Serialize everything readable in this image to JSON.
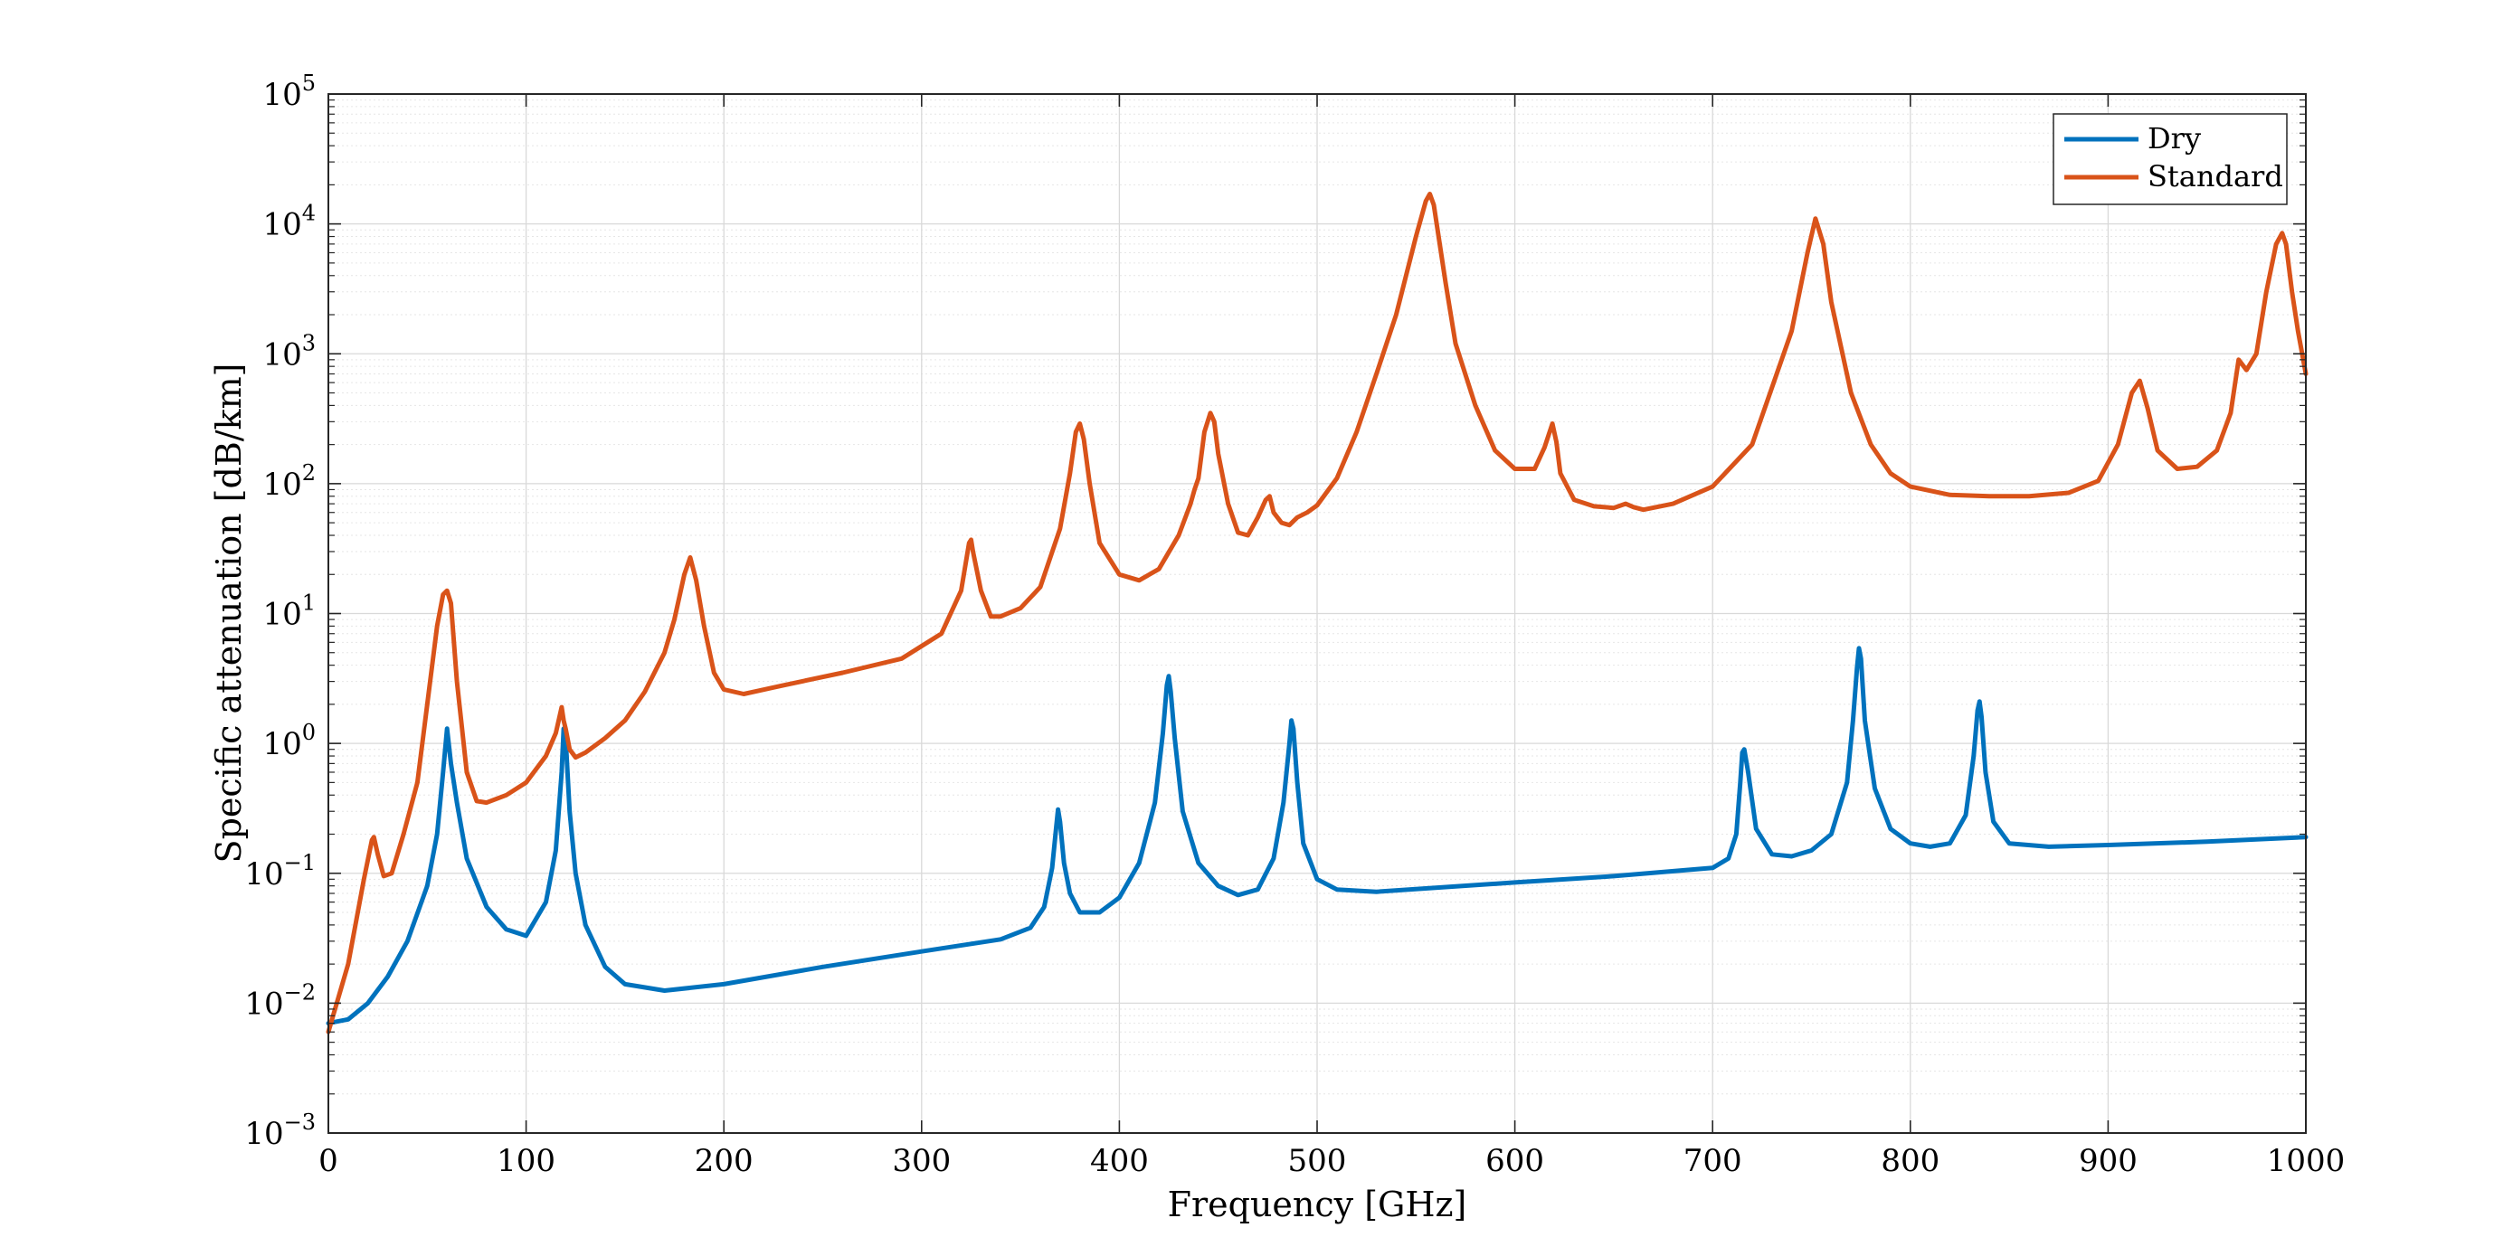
{
  "chart_data": {
    "type": "line",
    "title": "",
    "xlabel": "Frequency [GHz]",
    "ylabel": "Specific attenuation [dB/km]",
    "xlim": [
      0,
      1000
    ],
    "ylim": [
      0.001,
      100000
    ],
    "yscale": "log",
    "grid": true,
    "legend_position": "top-right",
    "x_ticks": [
      0,
      100,
      200,
      300,
      400,
      500,
      600,
      700,
      800,
      900,
      1000
    ],
    "x_tick_labels": [
      "0",
      "100",
      "200",
      "300",
      "400",
      "500",
      "600",
      "700",
      "800",
      "900",
      "1000"
    ],
    "y_ticks": [
      0.001,
      0.01,
      0.1,
      1,
      10,
      100,
      1000,
      10000,
      100000
    ],
    "y_tick_labels": [
      {
        "base": "10",
        "exp": "−3"
      },
      {
        "base": "10",
        "exp": "−2"
      },
      {
        "base": "10",
        "exp": "−1"
      },
      {
        "base": "10",
        "exp": "0"
      },
      {
        "base": "10",
        "exp": "1"
      },
      {
        "base": "10",
        "exp": "2"
      },
      {
        "base": "10",
        "exp": "3"
      },
      {
        "base": "10",
        "exp": "4"
      },
      {
        "base": "10",
        "exp": "5"
      }
    ],
    "series": [
      {
        "name": "Dry",
        "color": "#0072BD",
        "x": [
          0,
          10,
          20,
          30,
          40,
          50,
          55,
          58,
          60,
          62,
          65,
          70,
          80,
          90,
          100,
          110,
          115,
          118,
          119,
          120,
          122,
          125,
          130,
          140,
          150,
          170,
          200,
          250,
          300,
          340,
          355,
          362,
          366,
          368,
          369,
          370,
          372,
          375,
          380,
          390,
          400,
          410,
          418,
          422,
          424,
          425,
          426,
          428,
          432,
          440,
          450,
          460,
          470,
          478,
          483,
          486,
          487,
          488,
          490,
          493,
          500,
          510,
          530,
          600,
          650,
          700,
          708,
          712,
          714,
          715,
          716,
          718,
          722,
          730,
          740,
          750,
          760,
          768,
          771,
          773,
          774,
          775,
          777,
          782,
          790,
          800,
          810,
          820,
          828,
          832,
          834,
          835,
          836,
          838,
          842,
          850,
          870,
          900,
          950,
          1000
        ],
        "y": [
          0.007,
          0.0075,
          0.01,
          0.016,
          0.03,
          0.08,
          0.2,
          0.6,
          1.3,
          0.7,
          0.35,
          0.13,
          0.055,
          0.037,
          0.033,
          0.06,
          0.15,
          0.6,
          1.3,
          1.1,
          0.3,
          0.1,
          0.04,
          0.019,
          0.014,
          0.0125,
          0.014,
          0.019,
          0.025,
          0.031,
          0.038,
          0.055,
          0.11,
          0.22,
          0.31,
          0.25,
          0.12,
          0.07,
          0.05,
          0.05,
          0.065,
          0.12,
          0.35,
          1.2,
          2.8,
          3.3,
          2.5,
          1.1,
          0.3,
          0.12,
          0.08,
          0.068,
          0.075,
          0.13,
          0.35,
          1.0,
          1.5,
          1.3,
          0.5,
          0.17,
          0.09,
          0.075,
          0.072,
          0.085,
          0.095,
          0.11,
          0.13,
          0.2,
          0.5,
          0.85,
          0.9,
          0.6,
          0.22,
          0.14,
          0.135,
          0.15,
          0.2,
          0.5,
          1.5,
          3.8,
          5.4,
          4.5,
          1.5,
          0.45,
          0.22,
          0.17,
          0.16,
          0.17,
          0.28,
          0.8,
          1.8,
          2.1,
          1.6,
          0.6,
          0.25,
          0.17,
          0.16,
          0.165,
          0.175,
          0.19
        ]
      },
      {
        "name": "Standard",
        "color": "#D95319",
        "x": [
          0,
          10,
          18,
          22,
          23,
          25,
          28,
          32,
          38,
          45,
          50,
          55,
          58,
          60,
          62,
          65,
          70,
          75,
          80,
          90,
          100,
          110,
          115,
          118,
          119,
          120,
          122,
          125,
          130,
          140,
          150,
          160,
          170,
          175,
          180,
          183,
          186,
          190,
          195,
          200,
          210,
          230,
          260,
          290,
          310,
          320,
          324,
          325,
          326,
          330,
          335,
          340,
          350,
          360,
          370,
          375,
          378,
          380,
          382,
          385,
          390,
          400,
          410,
          420,
          430,
          436,
          438,
          440,
          443,
          446,
          448,
          450,
          455,
          460,
          465,
          470,
          474,
          476,
          478,
          482,
          486,
          490,
          495,
          500,
          510,
          520,
          530,
          540,
          550,
          555,
          557,
          559,
          565,
          570,
          580,
          590,
          600,
          610,
          615,
          619,
          621,
          623,
          630,
          640,
          650,
          656,
          660,
          665,
          680,
          700,
          720,
          740,
          748,
          752,
          756,
          760,
          770,
          780,
          790,
          800,
          820,
          840,
          860,
          880,
          895,
          905,
          912,
          916,
          920,
          925,
          935,
          945,
          955,
          962,
          966,
          970,
          975,
          980,
          985,
          988,
          990,
          993,
          996,
          1000
        ],
        "y": [
          0.006,
          0.02,
          0.09,
          0.18,
          0.19,
          0.14,
          0.095,
          0.1,
          0.2,
          0.5,
          2,
          8,
          14,
          15,
          12,
          3,
          0.6,
          0.36,
          0.35,
          0.4,
          0.5,
          0.8,
          1.2,
          1.9,
          1.5,
          1.3,
          0.9,
          0.78,
          0.85,
          1.1,
          1.5,
          2.5,
          5,
          9,
          20,
          27,
          18,
          8,
          3.5,
          2.6,
          2.4,
          2.8,
          3.5,
          4.5,
          7,
          15,
          35,
          37,
          30,
          15,
          9.5,
          9.5,
          11,
          16,
          45,
          120,
          250,
          290,
          220,
          100,
          35,
          20,
          18,
          22,
          40,
          70,
          90,
          110,
          250,
          350,
          300,
          170,
          70,
          42,
          40,
          55,
          75,
          80,
          60,
          50,
          48,
          55,
          60,
          68,
          110,
          250,
          700,
          2000,
          8000,
          15000,
          17000,
          14000,
          3500,
          1200,
          400,
          180,
          130,
          130,
          190,
          290,
          210,
          120,
          75,
          67,
          65,
          70,
          66,
          63,
          70,
          95,
          200,
          1500,
          6000,
          11000,
          7000,
          2500,
          500,
          200,
          120,
          95,
          82,
          80,
          80,
          85,
          105,
          200,
          500,
          620,
          380,
          180,
          130,
          135,
          180,
          350,
          900,
          750,
          1000,
          3000,
          7000,
          8500,
          7000,
          3000,
          1500,
          700
        ]
      }
    ]
  }
}
